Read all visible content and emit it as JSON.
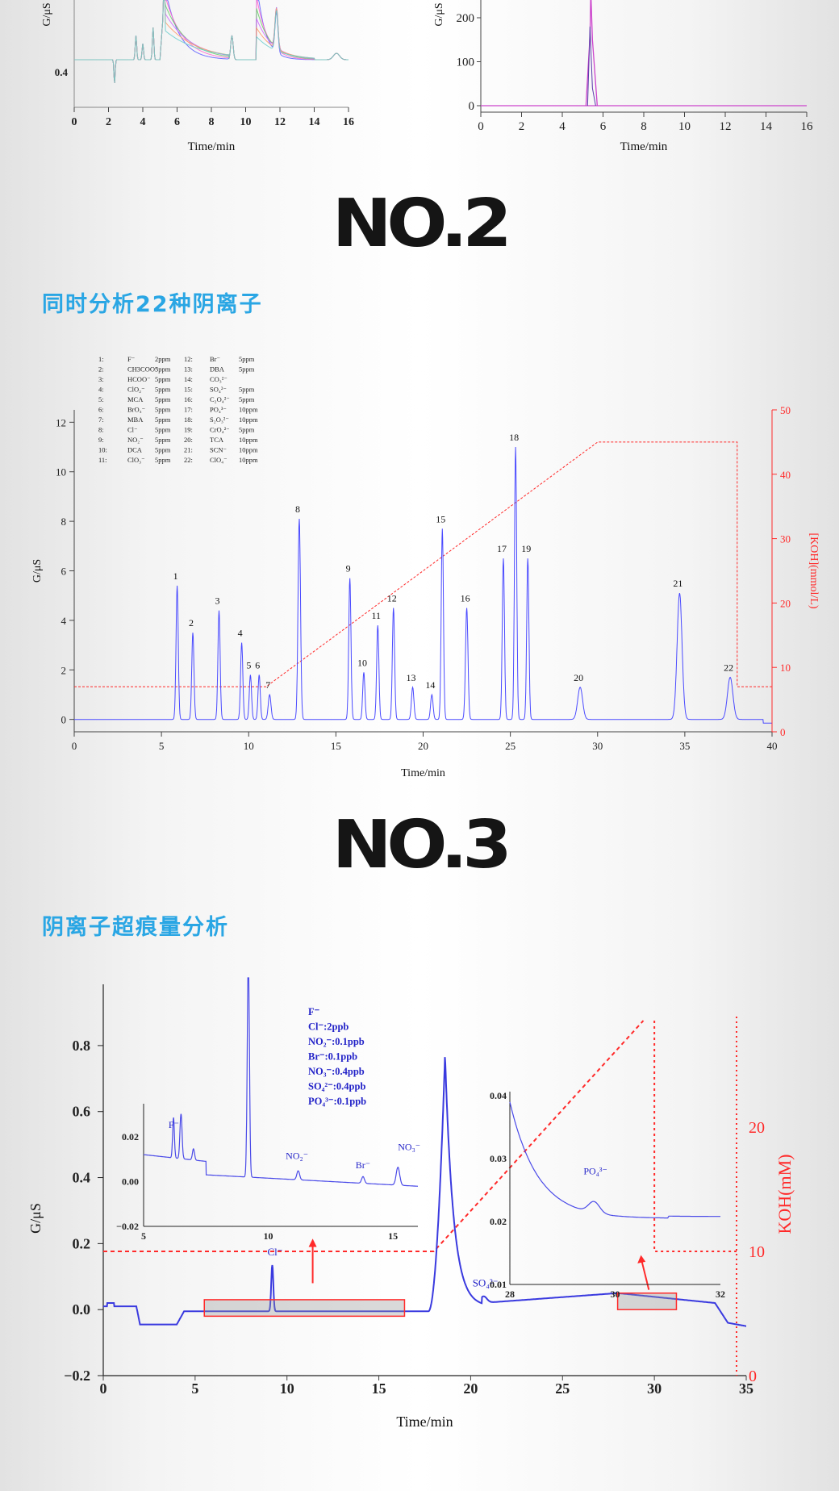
{
  "sections": {
    "no2": {
      "title": "NO.2",
      "heading": "同时分析22种阴离子"
    },
    "no3": {
      "title": "NO.3",
      "heading": "阴离子超痕量分析"
    }
  },
  "colors": {
    "heading": "#2aa6e4",
    "trace_blue": "#4a4aff",
    "gradient_red": "#ff2a2a",
    "title_black": "#151515"
  },
  "chart_data": [
    {
      "id": "top-left-partial",
      "type": "line",
      "xlabel": "Time/min",
      "ylabel": "G/μS",
      "xlim": [
        0,
        16
      ],
      "x_ticks": [
        0,
        2,
        4,
        6,
        8,
        10,
        12,
        14,
        16
      ],
      "y_ticks_visible": [
        "0.4"
      ],
      "series_colors": [
        "#5a5aff",
        "#ff66cc",
        "#66cc66",
        "#cc66ff",
        "#ff9966",
        "#66cccc"
      ]
    },
    {
      "id": "top-right-partial",
      "type": "line",
      "xlabel": "Time/min",
      "ylabel": "G/μS",
      "xlim": [
        0,
        16
      ],
      "x_ticks": [
        0,
        2,
        4,
        6,
        8,
        10,
        12,
        14,
        16
      ],
      "y_ticks": [
        0,
        100,
        200
      ],
      "peak_time": 5.4
    },
    {
      "id": "no2-chromatogram",
      "type": "line",
      "xlabel": "Time/min",
      "ylabel": "G/μS",
      "ylabel_right": "[KOH](mmol/L)",
      "xlim": [
        0,
        40
      ],
      "ylim": [
        -0.5,
        12.5
      ],
      "ylim_right": [
        0,
        50
      ],
      "x_ticks": [
        0,
        5,
        10,
        15,
        20,
        25,
        30,
        35,
        40
      ],
      "y_ticks": [
        0,
        2,
        4,
        6,
        8,
        10,
        12
      ],
      "y_ticks_right": [
        0,
        10,
        20,
        30,
        40,
        50
      ],
      "peaks": [
        {
          "label": "1",
          "t": 5.9,
          "h": 5.4,
          "w": 0.09
        },
        {
          "label": "2",
          "t": 6.8,
          "h": 3.5,
          "w": 0.09
        },
        {
          "label": "3",
          "t": 8.3,
          "h": 4.4,
          "w": 0.09
        },
        {
          "label": "4",
          "t": 9.6,
          "h": 3.1,
          "w": 0.09
        },
        {
          "label": "5",
          "t": 10.1,
          "h": 1.8,
          "w": 0.09
        },
        {
          "label": "6",
          "t": 10.6,
          "h": 1.8,
          "w": 0.09
        },
        {
          "label": "7",
          "t": 11.2,
          "h": 1.0,
          "w": 0.11
        },
        {
          "label": "8",
          "t": 12.9,
          "h": 8.1,
          "w": 0.1
        },
        {
          "label": "9",
          "t": 15.8,
          "h": 5.7,
          "w": 0.09
        },
        {
          "label": "10",
          "t": 16.6,
          "h": 1.9,
          "w": 0.09
        },
        {
          "label": "11",
          "t": 17.4,
          "h": 3.8,
          "w": 0.09
        },
        {
          "label": "12",
          "t": 18.3,
          "h": 4.5,
          "w": 0.09
        },
        {
          "label": "13",
          "t": 19.4,
          "h": 1.3,
          "w": 0.1
        },
        {
          "label": "14",
          "t": 20.5,
          "h": 1.0,
          "w": 0.1
        },
        {
          "label": "15",
          "t": 21.1,
          "h": 7.7,
          "w": 0.09
        },
        {
          "label": "16",
          "t": 22.5,
          "h": 4.5,
          "w": 0.1
        },
        {
          "label": "17",
          "t": 24.6,
          "h": 6.5,
          "w": 0.09
        },
        {
          "label": "18",
          "t": 25.3,
          "h": 11.0,
          "w": 0.09
        },
        {
          "label": "19",
          "t": 26.0,
          "h": 6.5,
          "w": 0.09
        },
        {
          "label": "20",
          "t": 29.0,
          "h": 1.3,
          "w": 0.2
        },
        {
          "label": "21",
          "t": 34.7,
          "h": 5.1,
          "w": 0.2
        },
        {
          "label": "22",
          "t": 37.6,
          "h": 1.7,
          "w": 0.22
        }
      ],
      "gradient": [
        [
          0,
          7
        ],
        [
          11,
          7
        ],
        [
          30,
          45
        ],
        [
          38,
          45
        ],
        [
          38,
          7
        ],
        [
          40,
          7
        ]
      ],
      "legend_table": [
        [
          "1:",
          "F⁻",
          "2ppm",
          "12:",
          "Br⁻",
          "5ppm"
        ],
        [
          "2:",
          "CH3COO⁻",
          "5ppm",
          "13:",
          "DBA",
          "5ppm"
        ],
        [
          "3:",
          "HCOO⁻",
          "5ppm",
          "14:",
          "CO₃²⁻",
          ""
        ],
        [
          "4:",
          "ClO₂⁻",
          "5ppm",
          "15:",
          "SO₄²⁻",
          "5ppm"
        ],
        [
          "5:",
          "MCA",
          "5ppm",
          "16:",
          "C₂O₄²⁻",
          "5ppm"
        ],
        [
          "6:",
          "BrO₃⁻",
          "5ppm",
          "17:",
          "PO₄³⁻",
          "10ppm"
        ],
        [
          "7:",
          "MBA",
          "5ppm",
          "18:",
          "S₂O₃²⁻",
          "10ppm"
        ],
        [
          "8:",
          "Cl⁻",
          "5ppm",
          "19:",
          "CrO₄²⁻",
          "5ppm"
        ],
        [
          "9:",
          "NO₂⁻",
          "5ppm",
          "20:",
          "TCA",
          "10ppm"
        ],
        [
          "10:",
          "DCA",
          "5ppm",
          "21:",
          "SCN⁻",
          "10ppm"
        ],
        [
          "11:",
          "ClO₃⁻",
          "5ppm",
          "22:",
          "ClO₄⁻",
          "10ppm"
        ]
      ]
    },
    {
      "id": "no3-trace",
      "type": "line",
      "xlabel": "Time/min",
      "ylabel": "G/μS",
      "ylabel_right": "KOH(mM)",
      "xlim": [
        0,
        35
      ],
      "ylim": [
        -0.2,
        0.9
      ],
      "x_ticks": [
        0,
        5,
        10,
        15,
        20,
        25,
        30,
        35
      ],
      "y_ticks": [
        "−0.2",
        "0.0",
        "0.2",
        "0.4",
        "0.6",
        "0.8"
      ],
      "y_ticks_right": [
        0,
        10,
        20
      ],
      "annotations": [
        "Cl⁻",
        "SO₄²⁻"
      ],
      "main_peaks": [
        {
          "name": "Cl⁻",
          "t": 9.2,
          "h": 0.14
        },
        {
          "name": "SO₄²⁻",
          "t": 18.6,
          "h": 0.77
        }
      ],
      "legend": [
        "F⁻",
        "Cl⁻:2ppb",
        "NO₂⁻:0.1ppb",
        "Br⁻:0.1ppb",
        "NO₃⁻:0.4ppb",
        "SO₄²⁻:0.4ppb",
        "PO₄³⁻:0.1ppb"
      ],
      "inset_left": {
        "xlim": [
          5,
          16
        ],
        "x_ticks": [
          5,
          10,
          15
        ],
        "y_ticks": [
          "0.02",
          "0.00",
          "−0.02"
        ],
        "labels": [
          "F⁻",
          "NO₂⁻",
          "Br⁻",
          "NO₃⁻"
        ]
      },
      "inset_right": {
        "xlim": [
          28,
          32
        ],
        "x_ticks": [
          28,
          30,
          32
        ],
        "y_ticks": [
          "0.04",
          "0.03",
          "0.02",
          "0.01"
        ],
        "labels": [
          "PO₄³⁻"
        ]
      }
    }
  ]
}
